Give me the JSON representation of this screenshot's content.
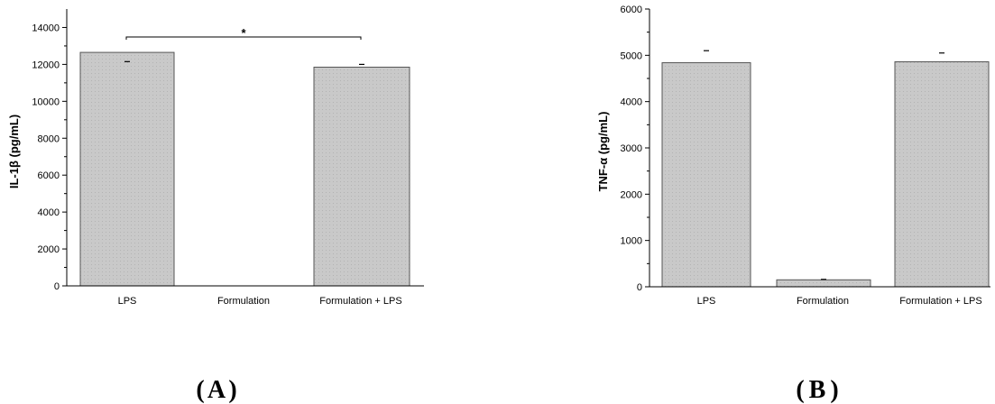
{
  "chart_data": [
    {
      "type": "bar",
      "panel_label": "A",
      "categories": [
        "LPS",
        "Formulation",
        "Formulation + LPS"
      ],
      "values": [
        12650,
        0,
        11850
      ],
      "error_top": [
        12150,
        null,
        12000
      ],
      "ylabel": "IL-1β (pg/mL)",
      "ylim": [
        0,
        15000
      ],
      "yticks": [
        0,
        2000,
        4000,
        6000,
        8000,
        10000,
        12000,
        14000
      ],
      "significance": {
        "from": 0,
        "to": 2,
        "label": "*"
      },
      "bar_color": "#c8c8c8"
    },
    {
      "type": "bar",
      "panel_label": "B",
      "categories": [
        "LPS",
        "Formulation",
        "Formulation + LPS"
      ],
      "values": [
        4840,
        150,
        4860
      ],
      "error_top": [
        5100,
        160,
        5050
      ],
      "ylabel": "TNF-α (pg/mL)",
      "ylim": [
        0,
        6000
      ],
      "yticks": [
        0,
        1000,
        2000,
        3000,
        4000,
        5000,
        6000
      ],
      "bar_color": "#c8c8c8"
    }
  ]
}
